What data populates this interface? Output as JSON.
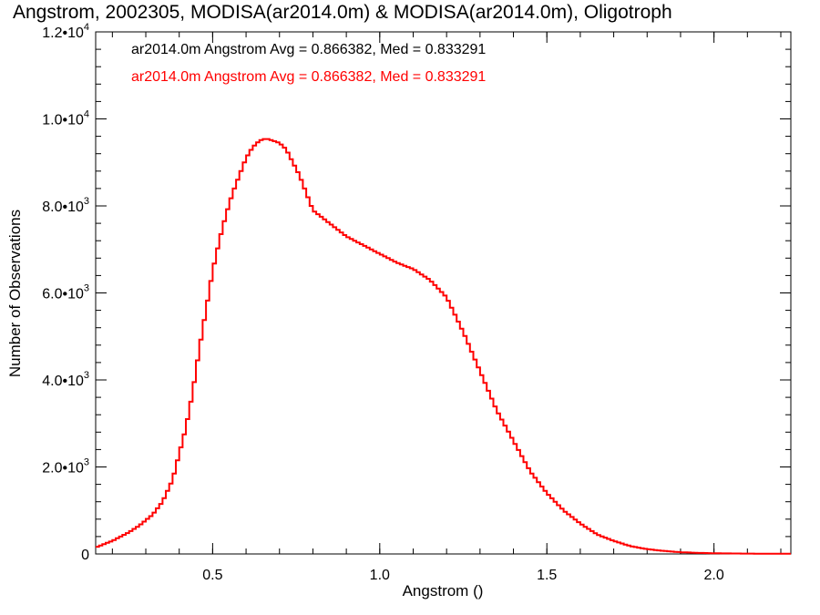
{
  "chart_data": {
    "type": "line",
    "title": "Angstrom, 2002305, MODISA(ar2014.0m) & MODISA(ar2014.0m), Oligotroph",
    "xlabel": "Angstrom ()",
    "ylabel": "Number of Observations",
    "xlim": [
      0.15,
      2.23
    ],
    "ylim": [
      0,
      12000
    ],
    "x_ticks": [
      {
        "value": 0.5,
        "label": "0.5"
      },
      {
        "value": 1.0,
        "label": "1.0"
      },
      {
        "value": 1.5,
        "label": "1.5"
      },
      {
        "value": 2.0,
        "label": "2.0"
      }
    ],
    "y_ticks": [
      {
        "value": 0,
        "mant": "0",
        "exp": ""
      },
      {
        "value": 2000,
        "mant": "2.0•10",
        "exp": "3"
      },
      {
        "value": 4000,
        "mant": "4.0•10",
        "exp": "3"
      },
      {
        "value": 6000,
        "mant": "6.0•10",
        "exp": "3"
      },
      {
        "value": 8000,
        "mant": "8.0•10",
        "exp": "3"
      },
      {
        "value": 10000,
        "mant": "1.0•10",
        "exp": "4"
      },
      {
        "value": 12000,
        "mant": "1.2•10",
        "exp": "4"
      }
    ],
    "legend": [
      {
        "text": "ar2014.0m Angstrom Avg = 0.866382, Med = 0.833291",
        "color": "#000000"
      },
      {
        "text": "ar2014.0m Angstrom Avg = 0.866382, Med = 0.833291",
        "color": "#ff0000"
      }
    ],
    "legend_position": "top-left",
    "step": true,
    "series": [
      {
        "color": "#ff0000",
        "points": [
          [
            0.15,
            150
          ],
          [
            0.2,
            300
          ],
          [
            0.25,
            500
          ],
          [
            0.28,
            650
          ],
          [
            0.32,
            900
          ],
          [
            0.35,
            1200
          ],
          [
            0.38,
            1700
          ],
          [
            0.4,
            2300
          ],
          [
            0.42,
            2900
          ],
          [
            0.44,
            3700
          ],
          [
            0.46,
            4700
          ],
          [
            0.48,
            5600
          ],
          [
            0.5,
            6500
          ],
          [
            0.52,
            7200
          ],
          [
            0.54,
            7800
          ],
          [
            0.56,
            8300
          ],
          [
            0.58,
            8700
          ],
          [
            0.6,
            9100
          ],
          [
            0.62,
            9350
          ],
          [
            0.64,
            9500
          ],
          [
            0.66,
            9550
          ],
          [
            0.68,
            9500
          ],
          [
            0.7,
            9450
          ],
          [
            0.72,
            9300
          ],
          [
            0.74,
            9000
          ],
          [
            0.76,
            8700
          ],
          [
            0.78,
            8300
          ],
          [
            0.8,
            7900
          ],
          [
            0.85,
            7600
          ],
          [
            0.9,
            7300
          ],
          [
            0.95,
            7100
          ],
          [
            1.0,
            6900
          ],
          [
            1.05,
            6700
          ],
          [
            1.1,
            6550
          ],
          [
            1.15,
            6300
          ],
          [
            1.2,
            5900
          ],
          [
            1.25,
            5100
          ],
          [
            1.3,
            4200
          ],
          [
            1.35,
            3300
          ],
          [
            1.4,
            2600
          ],
          [
            1.45,
            1900
          ],
          [
            1.5,
            1400
          ],
          [
            1.55,
            1000
          ],
          [
            1.6,
            700
          ],
          [
            1.65,
            450
          ],
          [
            1.7,
            300
          ],
          [
            1.75,
            180
          ],
          [
            1.8,
            110
          ],
          [
            1.85,
            70
          ],
          [
            1.9,
            40
          ],
          [
            1.95,
            25
          ],
          [
            2.0,
            15
          ],
          [
            2.1,
            8
          ],
          [
            2.23,
            3
          ]
        ]
      }
    ]
  }
}
